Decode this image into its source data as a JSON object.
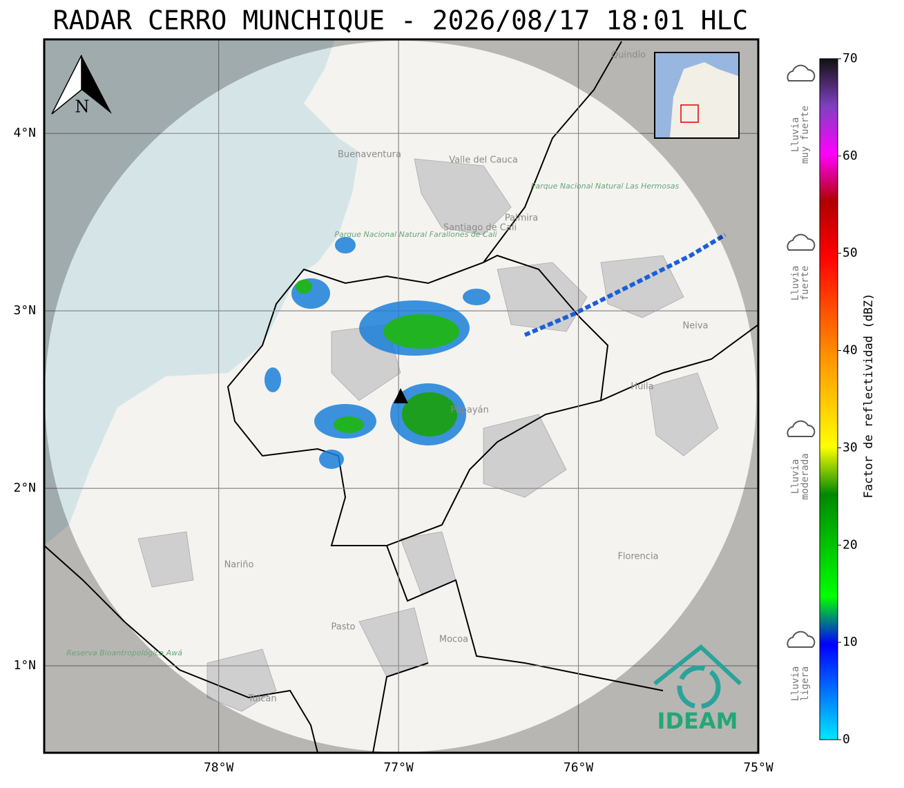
{
  "title": "RADAR CERRO MUNCHIQUE - 2026/08/17 18:01 HLC",
  "map": {
    "xlim": [
      -78.97,
      -75.0
    ],
    "ylim": [
      0.51,
      4.53
    ],
    "xticks": [
      {
        "value": -78,
        "label": "78°W"
      },
      {
        "value": -77,
        "label": "77°W"
      },
      {
        "value": -76,
        "label": "76°W"
      },
      {
        "value": -75,
        "label": "75°W"
      }
    ],
    "yticks": [
      {
        "value": 1,
        "label": "1°N"
      },
      {
        "value": 2,
        "label": "2°N"
      },
      {
        "value": 3,
        "label": "3°N"
      },
      {
        "value": 4,
        "label": "4°N"
      }
    ],
    "north": "N",
    "places": [
      "Quindío",
      "Buenaventura",
      "Valle del Cauca",
      "Santiago de Cali",
      "Palmira",
      "Parque Nacional Natural Farallones de Cali",
      "Parque Nacional Natural Las Hermosas",
      "Neiva",
      "Huila",
      "Popayán",
      "Nariño",
      "Pasto",
      "Mocoa",
      "Florencia",
      "Reserva Bioantropológica Awá",
      "Tulcán"
    ]
  },
  "colorbar": {
    "label": "Factor de reflectividad (dBZ)",
    "lim": [
      0,
      70
    ],
    "ticks": [
      0,
      10,
      20,
      30,
      40,
      50,
      60,
      70
    ]
  },
  "legend": [
    [
      "Lluvia",
      "ligera"
    ],
    [
      "Lluvia",
      "moderada"
    ],
    [
      "Lluvia",
      "fuerte"
    ],
    [
      "Lluvia",
      "muy fuerte"
    ]
  ],
  "logo": "IDEAM"
}
